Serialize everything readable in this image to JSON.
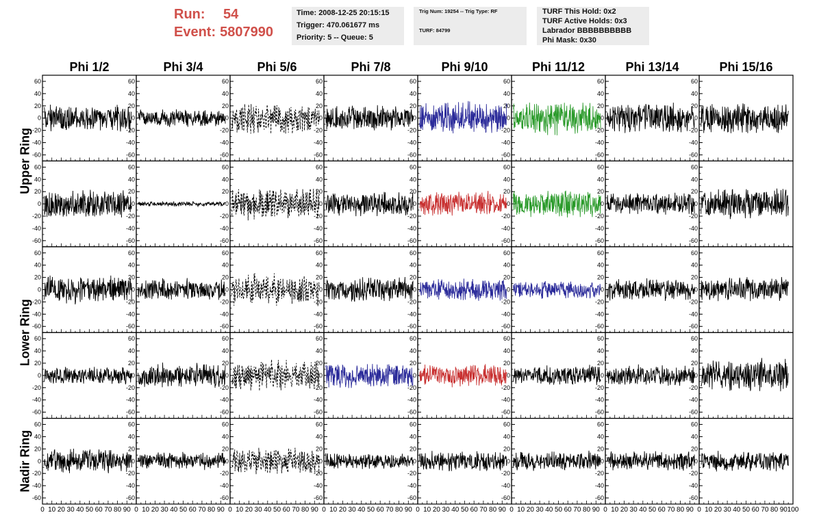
{
  "run": {
    "run_label": "Run:",
    "run_value": "54",
    "event_label": "Event:",
    "event_value": "5807990"
  },
  "info_time": {
    "time": "Time: 2008-12-25 20:15:15",
    "trigger": "Trigger: 470.061677 ms",
    "priority": "Priority: 5 -- Queue: 5"
  },
  "info_trig": {
    "trig": "Trig Num: 19254 -- Trig Type: RF",
    "turf": "TURF: 84799"
  },
  "info_turf": {
    "this_hold": "TURF This Hold: 0x2",
    "active_holds": "TURF Active Holds: 0x3",
    "labrador": "Labrador BBBBBBBBBB",
    "phi_mask": "Phi Mask: 0x30"
  },
  "columns": [
    "Phi 1/2",
    "Phi 3/4",
    "Phi 5/6",
    "Phi 7/8",
    "Phi 9/10",
    "Phi 11/12",
    "Phi 13/14",
    "Phi 15/16"
  ],
  "rings": [
    {
      "name": "Upper Ring",
      "rows": [
        0,
        1
      ]
    },
    {
      "name": "Lower Ring",
      "rows": [
        2,
        3
      ]
    },
    {
      "name": "Nadir Ring",
      "rows": [
        4
      ]
    }
  ],
  "chart_data": {
    "type": "line",
    "description_rows": 5,
    "y_ticks": [
      60,
      40,
      20,
      0,
      -20,
      -40,
      -60
    ],
    "ylim": [
      -70,
      70
    ],
    "xlim": [
      0,
      100
    ],
    "x_ticks": [
      0,
      10,
      20,
      30,
      40,
      50,
      60,
      70,
      80,
      90,
      100
    ],
    "x_tick_labels_last": [
      "0",
      "10",
      "20",
      "30",
      "40",
      "50",
      "60",
      "70",
      "80",
      "90",
      "100"
    ],
    "colors": {
      "default": "#000000",
      "blue": "#2b2b9a",
      "green": "#2a9a2a",
      "red": "#c83030"
    },
    "panels": [
      [
        {
          "color": "default",
          "amp": 22,
          "style": "solid"
        },
        {
          "color": "default",
          "amp": 14,
          "style": "solid"
        },
        {
          "color": "default",
          "amp": 25,
          "style": "dashed"
        },
        {
          "color": "default",
          "amp": 20,
          "style": "solid"
        },
        {
          "color": "blue",
          "amp": 26,
          "style": "solid"
        },
        {
          "color": "green",
          "amp": 28,
          "style": "solid"
        },
        {
          "color": "default",
          "amp": 24,
          "style": "solid"
        },
        {
          "color": "default",
          "amp": 24,
          "style": "solid"
        }
      ],
      [
        {
          "color": "default",
          "amp": 22,
          "style": "solid"
        },
        {
          "color": "default",
          "amp": 4,
          "style": "solid"
        },
        {
          "color": "default",
          "amp": 26,
          "style": "dashed"
        },
        {
          "color": "default",
          "amp": 20,
          "style": "solid"
        },
        {
          "color": "red",
          "amp": 20,
          "style": "solid"
        },
        {
          "color": "green",
          "amp": 22,
          "style": "solid"
        },
        {
          "color": "default",
          "amp": 18,
          "style": "solid"
        },
        {
          "color": "default",
          "amp": 26,
          "style": "solid"
        }
      ],
      [
        {
          "color": "default",
          "amp": 22,
          "style": "solid"
        },
        {
          "color": "default",
          "amp": 18,
          "style": "solid"
        },
        {
          "color": "default",
          "amp": 25,
          "style": "dashed"
        },
        {
          "color": "default",
          "amp": 20,
          "style": "solid"
        },
        {
          "color": "blue",
          "amp": 18,
          "style": "solid"
        },
        {
          "color": "blue",
          "amp": 14,
          "style": "solid"
        },
        {
          "color": "default",
          "amp": 18,
          "style": "solid"
        },
        {
          "color": "default",
          "amp": 20,
          "style": "solid"
        }
      ],
      [
        {
          "color": "default",
          "amp": 14,
          "style": "solid"
        },
        {
          "color": "default",
          "amp": 20,
          "style": "solid"
        },
        {
          "color": "default",
          "amp": 25,
          "style": "dashed"
        },
        {
          "color": "blue",
          "amp": 20,
          "style": "solid"
        },
        {
          "color": "red",
          "amp": 18,
          "style": "solid"
        },
        {
          "color": "default",
          "amp": 16,
          "style": "solid"
        },
        {
          "color": "default",
          "amp": 18,
          "style": "solid"
        },
        {
          "color": "default",
          "amp": 26,
          "style": "solid"
        }
      ],
      [
        {
          "color": "default",
          "amp": 20,
          "style": "solid"
        },
        {
          "color": "default",
          "amp": 14,
          "style": "solid"
        },
        {
          "color": "default",
          "amp": 22,
          "style": "dashed"
        },
        {
          "color": "default",
          "amp": 14,
          "style": "solid"
        },
        {
          "color": "default",
          "amp": 16,
          "style": "solid"
        },
        {
          "color": "default",
          "amp": 16,
          "style": "solid"
        },
        {
          "color": "default",
          "amp": 16,
          "style": "solid"
        },
        {
          "color": "default",
          "amp": 16,
          "style": "solid"
        }
      ]
    ]
  }
}
